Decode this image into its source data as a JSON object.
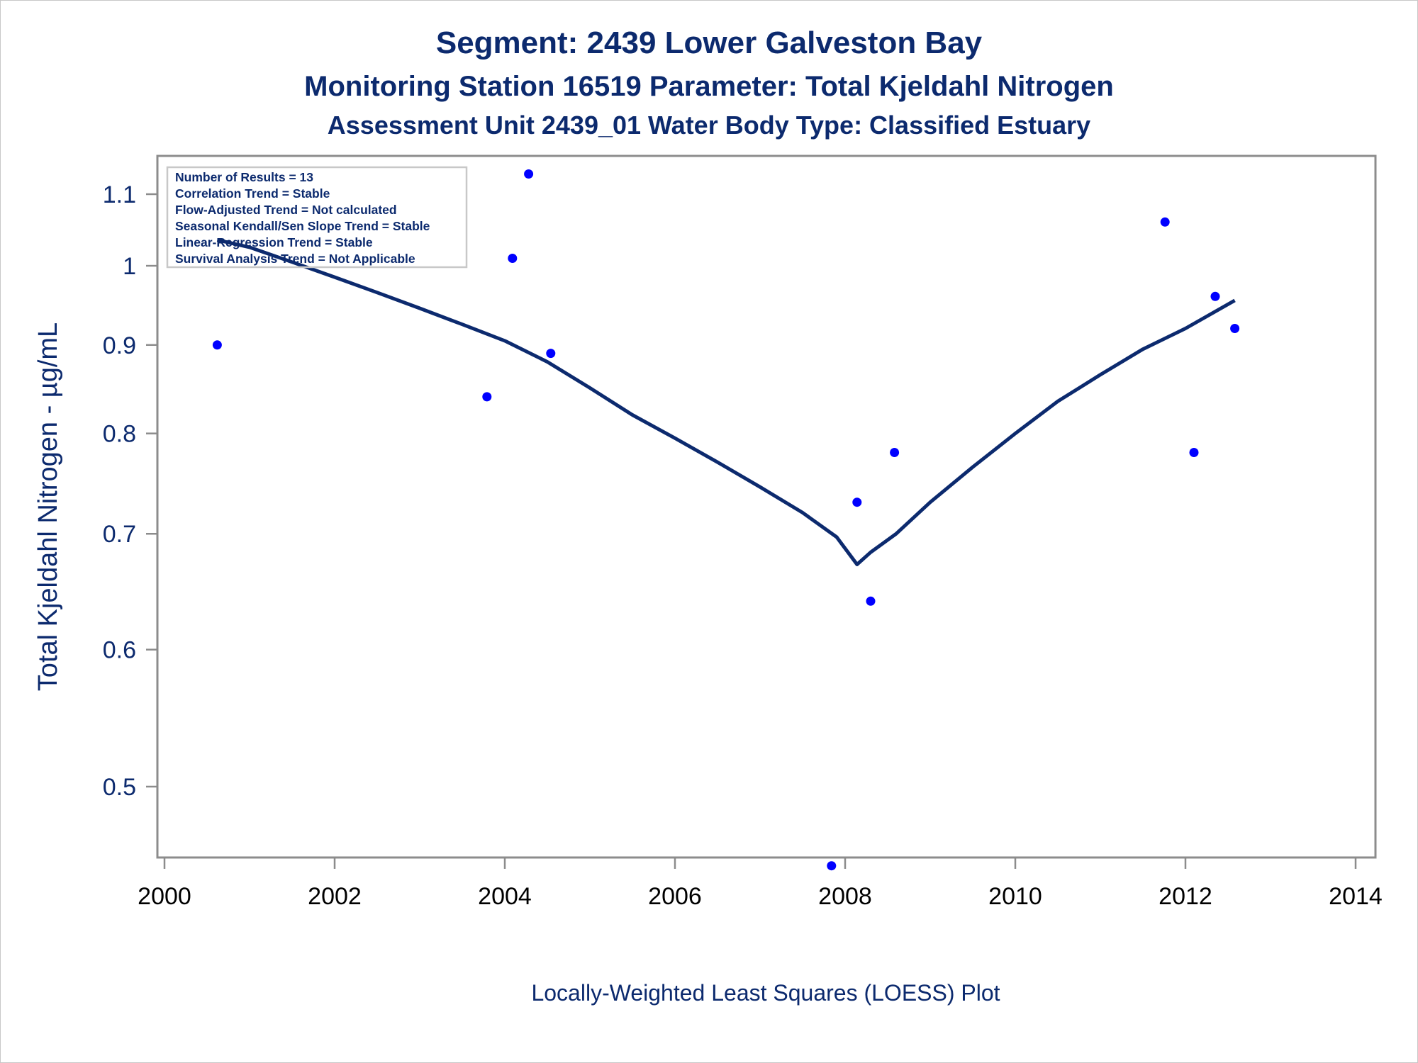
{
  "titles": {
    "line1": "Segment: 2439  Lower Galveston Bay",
    "line2": "Monitoring Station 16519 Parameter: Total Kjeldahl Nitrogen",
    "line3": "Assessment Unit 2439_01   Water Body Type: Classified Estuary"
  },
  "footnote": "Locally-Weighted Least Squares (LOESS) Plot",
  "stats_box": [
    "Number of Results = 13",
    "Correlation Trend = Stable",
    "Flow-Adjusted Trend = Not calculated",
    "Seasonal Kendall/Sen Slope Trend = Stable",
    "Linear-Regression Trend = Stable",
    "Survival Analysis Trend = Not Applicable"
  ],
  "colors": {
    "text": "#0c2a6e",
    "points": "#0000ff",
    "loess_line": "#0c2a6e",
    "axis": "#8c8c8c"
  },
  "chart_data": {
    "type": "scatter",
    "title": "Segment: 2439  Lower Galveston Bay",
    "xlabel": "",
    "ylabel": "Total Kjeldahl Nitrogen -  µg/mL",
    "yscale": "log",
    "xlim": [
      2000,
      2014
    ],
    "ylim": [
      0.45,
      1.15
    ],
    "xticks": [
      "2000",
      "2002",
      "2004",
      "2006",
      "2008",
      "2010",
      "2012",
      "2014"
    ],
    "yticks": [
      "0.5",
      "0.6",
      "0.7",
      "0.8",
      "0.9",
      "1",
      "1.1"
    ],
    "legend": "none",
    "series": [
      {
        "kind": "points",
        "x": [
          2000.62,
          2003.79,
          2004.09,
          2004.28,
          2004.54,
          2007.84,
          2008.14,
          2008.3,
          2008.58,
          2011.76,
          2012.1,
          2012.35,
          2012.58
        ],
        "y": [
          0.9,
          0.84,
          1.01,
          1.13,
          0.89,
          0.45,
          0.73,
          0.64,
          0.78,
          1.06,
          0.78,
          0.96,
          0.92
        ]
      },
      {
        "kind": "loess",
        "x": [
          2000.62,
          2001.0,
          2001.5,
          2002.0,
          2002.5,
          2003.0,
          2003.5,
          2004.0,
          2004.5,
          2005.0,
          2005.5,
          2006.0,
          2006.5,
          2007.0,
          2007.5,
          2007.9,
          2008.14,
          2008.3,
          2008.6,
          2009.0,
          2009.5,
          2010.0,
          2010.5,
          2011.0,
          2011.5,
          2012.0,
          2012.58
        ],
        "y": [
          1.035,
          1.025,
          1.005,
          0.985,
          0.965,
          0.945,
          0.925,
          0.905,
          0.88,
          0.85,
          0.82,
          0.795,
          0.77,
          0.745,
          0.72,
          0.697,
          0.672,
          0.683,
          0.7,
          0.73,
          0.765,
          0.8,
          0.835,
          0.865,
          0.895,
          0.92,
          0.955
        ]
      }
    ]
  }
}
